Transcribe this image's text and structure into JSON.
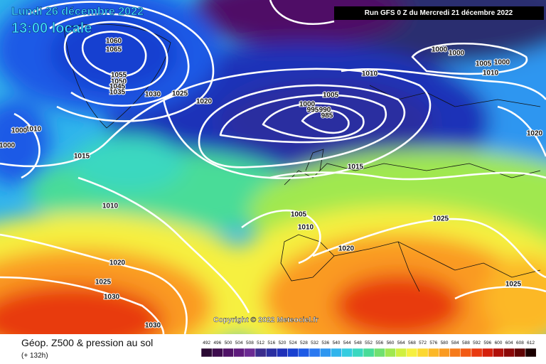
{
  "header": {
    "date": "Lundi 26 décembre 2022",
    "time": "13:00 locale",
    "run": "Run GFS 0 Z du Mercredi 21 décembre 2022"
  },
  "copyright": "Copyright © 2022 Meteociel.fr",
  "footer": {
    "title": "Géop. Z500 & pression au sol",
    "lead": "(+ 132h)"
  },
  "isobar_labels": [
    1060,
    1065,
    1055,
    1050,
    1045,
    1035,
    1030,
    1025,
    1020,
    1010,
    1000,
    1000,
    1015,
    1010,
    1020,
    1025,
    1030,
    1030,
    1005,
    1000,
    995,
    990,
    985,
    1010,
    1015,
    1005,
    1010,
    1020,
    1025,
    1000,
    1000,
    1005,
    1000,
    1010,
    1020,
    1025
  ],
  "scale": {
    "values": [
      492,
      496,
      500,
      504,
      508,
      512,
      516,
      520,
      524,
      528,
      532,
      536,
      540,
      544,
      548,
      552,
      556,
      560,
      564,
      568,
      572,
      576,
      580,
      584,
      588,
      592,
      596,
      600,
      604,
      608,
      612
    ],
    "colors": [
      "#2a0933",
      "#3d0b4d",
      "#4f1166",
      "#5e1a7c",
      "#6b2a92",
      "#3a2c8c",
      "#2a2ea0",
      "#1f30b8",
      "#1840d0",
      "#1d5ae6",
      "#2a78f0",
      "#2e96f0",
      "#30b4ec",
      "#34cce0",
      "#3ad8c0",
      "#48dc98",
      "#70e070",
      "#a0e850",
      "#d0f040",
      "#f6f040",
      "#fcd830",
      "#fcb828",
      "#fa9a20",
      "#f67a1a",
      "#f25a14",
      "#e83a10",
      "#d4200c",
      "#b0100a",
      "#8a0808",
      "#600404",
      "#1a0000"
    ]
  }
}
